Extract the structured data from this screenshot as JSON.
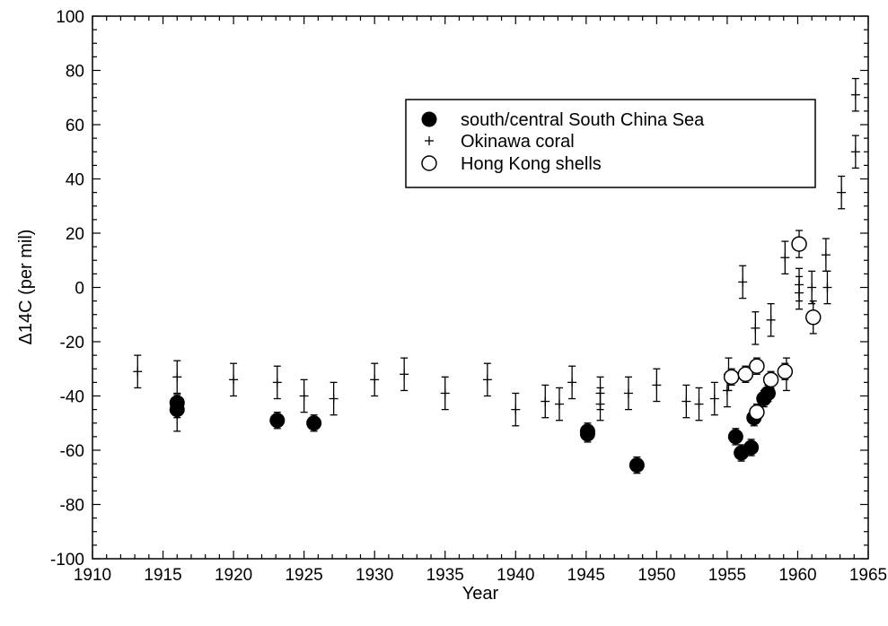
{
  "chart_data": {
    "type": "scatter",
    "title": "",
    "xlabel": "Year",
    "ylabel": "Δ14C (per mil)",
    "xlim": [
      1910,
      1965
    ],
    "ylim": [
      -100,
      100
    ],
    "x_ticks": [
      1910,
      1915,
      1920,
      1925,
      1930,
      1935,
      1940,
      1945,
      1950,
      1955,
      1960,
      1965
    ],
    "y_ticks": [
      -100,
      -80,
      -60,
      -40,
      -20,
      0,
      20,
      40,
      60,
      80,
      100
    ],
    "grid": false,
    "legend_position": "upper-right",
    "series": [
      {
        "name": "south/central South China Sea",
        "marker": "filled-circle",
        "points": [
          {
            "x": 1916.0,
            "y": -42.5,
            "err": 3
          },
          {
            "x": 1916.0,
            "y": -45.0,
            "err": 3
          },
          {
            "x": 1923.1,
            "y": -49.0,
            "err": 3
          },
          {
            "x": 1925.7,
            "y": -50.0,
            "err": 3
          },
          {
            "x": 1945.1,
            "y": -53.0,
            "err": 3
          },
          {
            "x": 1945.1,
            "y": -54.0,
            "err": 3
          },
          {
            "x": 1948.6,
            "y": -65.5,
            "err": 3
          },
          {
            "x": 1955.6,
            "y": -55.0,
            "err": 3
          },
          {
            "x": 1956.0,
            "y": -61.0,
            "err": 3
          },
          {
            "x": 1956.7,
            "y": -59.0,
            "err": 3
          },
          {
            "x": 1956.9,
            "y": -48.0,
            "err": 3
          },
          {
            "x": 1957.6,
            "y": -41.0,
            "err": 3
          },
          {
            "x": 1957.9,
            "y": -39.0,
            "err": 3
          }
        ]
      },
      {
        "name": "Okinawa coral",
        "marker": "plus",
        "points": [
          {
            "x": 1913.2,
            "y": -31,
            "err": 6
          },
          {
            "x": 1916.0,
            "y": -33,
            "err": 6
          },
          {
            "x": 1916.0,
            "y": -47,
            "err": 6
          },
          {
            "x": 1920.0,
            "y": -34,
            "err": 6
          },
          {
            "x": 1923.1,
            "y": -35,
            "err": 6
          },
          {
            "x": 1925.0,
            "y": -40,
            "err": 6
          },
          {
            "x": 1927.1,
            "y": -41,
            "err": 6
          },
          {
            "x": 1930.0,
            "y": -34,
            "err": 6
          },
          {
            "x": 1932.1,
            "y": -32,
            "err": 6
          },
          {
            "x": 1935.0,
            "y": -39,
            "err": 6
          },
          {
            "x": 1938.0,
            "y": -34,
            "err": 6
          },
          {
            "x": 1940.0,
            "y": -45,
            "err": 6
          },
          {
            "x": 1942.1,
            "y": -42,
            "err": 6
          },
          {
            "x": 1943.1,
            "y": -43,
            "err": 6
          },
          {
            "x": 1944.0,
            "y": -35,
            "err": 6
          },
          {
            "x": 1946.0,
            "y": -39,
            "err": 6
          },
          {
            "x": 1946.0,
            "y": -43,
            "err": 6
          },
          {
            "x": 1948.0,
            "y": -39,
            "err": 6
          },
          {
            "x": 1950.0,
            "y": -36,
            "err": 6
          },
          {
            "x": 1952.1,
            "y": -42,
            "err": 6
          },
          {
            "x": 1953.0,
            "y": -43,
            "err": 6
          },
          {
            "x": 1954.1,
            "y": -41,
            "err": 6
          },
          {
            "x": 1955.0,
            "y": -38,
            "err": 6
          },
          {
            "x": 1955.1,
            "y": -32,
            "err": 6
          },
          {
            "x": 1956.1,
            "y": 2,
            "err": 6
          },
          {
            "x": 1957.0,
            "y": -15,
            "err": 6
          },
          {
            "x": 1958.1,
            "y": -12,
            "err": 6
          },
          {
            "x": 1959.1,
            "y": 11,
            "err": 6
          },
          {
            "x": 1959.2,
            "y": -32,
            "err": 6
          },
          {
            "x": 1960.1,
            "y": 1,
            "err": 6
          },
          {
            "x": 1960.1,
            "y": -2,
            "err": 6
          },
          {
            "x": 1961.0,
            "y": 0,
            "err": 6
          },
          {
            "x": 1962.0,
            "y": 12,
            "err": 6
          },
          {
            "x": 1962.1,
            "y": 0,
            "err": 6
          },
          {
            "x": 1963.1,
            "y": 35,
            "err": 6
          },
          {
            "x": 1964.1,
            "y": 50,
            "err": 6
          },
          {
            "x": 1964.1,
            "y": 71,
            "err": 6
          }
        ]
      },
      {
        "name": "Hong Kong shells",
        "marker": "open-circle",
        "points": [
          {
            "x": 1955.3,
            "y": -33,
            "err": 3
          },
          {
            "x": 1956.3,
            "y": -32,
            "err": 3
          },
          {
            "x": 1957.1,
            "y": -29,
            "err": 3
          },
          {
            "x": 1957.1,
            "y": -46,
            "err": 3
          },
          {
            "x": 1958.1,
            "y": -34,
            "err": 3
          },
          {
            "x": 1959.1,
            "y": -31,
            "err": 3
          },
          {
            "x": 1960.1,
            "y": 16,
            "err": 5
          },
          {
            "x": 1961.1,
            "y": -11,
            "err": 6
          }
        ]
      }
    ]
  }
}
